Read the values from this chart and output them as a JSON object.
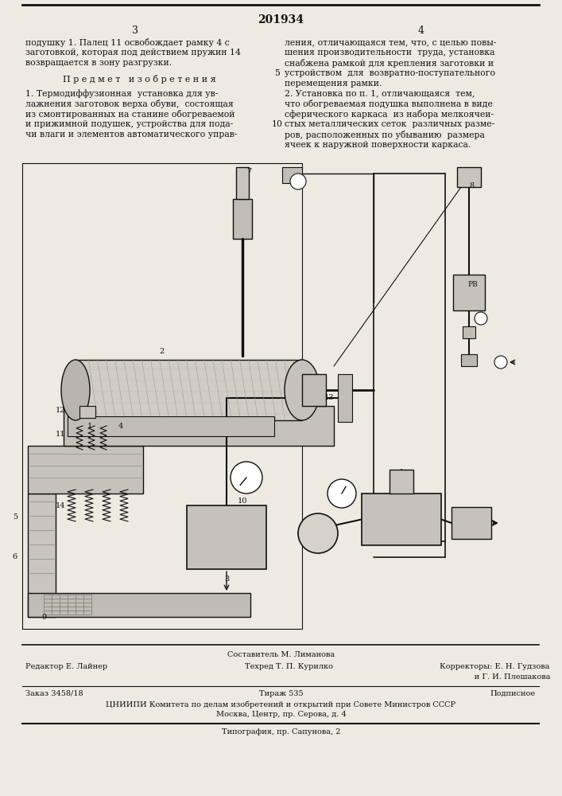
{
  "patent_number": "201934",
  "page_left_number": "3",
  "page_right_number": "4",
  "top_text_left_line1": "подушку 1. Палец 11 освобождает рамку 4 с",
  "top_text_left_line2": "заготовкой, которая под действием пружин 14",
  "top_text_left_line3": "возвращается в зону разгрузки.",
  "section_title": "П р е д м е т   и з о б р е т е н и я",
  "claim1_line1": "1. Термодиффузионная  установка для ув-",
  "claim1_line2": "лажнения заготовок верха обуви,  состоящая",
  "claim1_line3": "из смонтированных на станине обогреваемой",
  "claim1_line4": "и прижимной подушек, устройства для пода-",
  "claim1_line5": "чи влаги и элементов автоматического управ-",
  "top_right_line1": "ления, отличающаяся тем, что, с целью повы-",
  "top_right_line2": "шения производительности  труда, установка",
  "top_right_line3": "снабжена рамкой для крепления заготовки и",
  "top_right_line4": "устройством  для  возвратно-поступательного",
  "top_right_line5": "перемещения рамки.",
  "claim2_line1": "2. Установка по п. 1, отличающаяся  тем,",
  "claim2_line2": "что обогреваемая подушка выполнена в виде",
  "claim2_line3": "сферического каркаса  из набора мелкоячеи-",
  "claim2_line4": "стых металлических сеток  различных разме-",
  "claim2_line5": "ров, расположенных по убыванию  размера",
  "claim2_line6": "ячеек к наружной поверхности каркаса.",
  "line_num_5": "5",
  "line_num_10": "10",
  "bottom_editor": "Редактор Е. Лайнер",
  "bottom_composer": "Составитель М. Лиманова",
  "bottom_techred": "Техред Т. П. Курилко",
  "bottom_corrector1": "Корректоры: Е. Н. Гудзова",
  "bottom_corrector2": "              и Г. И. Плешакова",
  "bottom_order": "Заказ 3458/18",
  "bottom_print": "Тираж 535",
  "bottom_subscription": "Подписное",
  "bottom_org": "ЦНИИПИ Комитета по делам изобретений и открытий при Совете Министров СССР",
  "bottom_address": "Москва, Центр, пр. Серова, д. 4",
  "bottom_typography": "Типография, пр. Сапунова, 2",
  "bg_color": "#edeae2",
  "text_color": "#111111",
  "line_color": "#111111"
}
